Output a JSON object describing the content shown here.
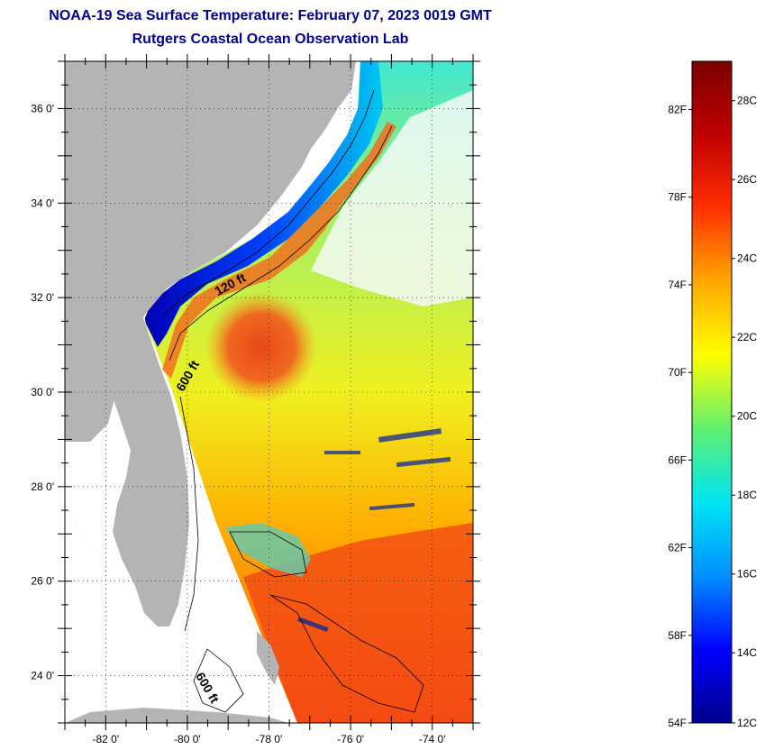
{
  "title": "NOAA-19 Sea Surface Temperature:  February 07, 2023 0019 GMT",
  "subtitle": "Rutgers Coastal Ocean Observation Lab",
  "map": {
    "lon_range": [
      -83,
      -73
    ],
    "lat_range": [
      23,
      37
    ],
    "lat_ticks": [
      {
        "value": 36,
        "label": "36 0'"
      },
      {
        "value": 34,
        "label": "34 0'"
      },
      {
        "value": 32,
        "label": "32 0'"
      },
      {
        "value": 30,
        "label": "30 0'"
      },
      {
        "value": 28,
        "label": "28 0'"
      },
      {
        "value": 26,
        "label": "26 0'"
      },
      {
        "value": 24,
        "label": "24 0'"
      }
    ],
    "lon_ticks": [
      {
        "value": -82,
        "label": "-82 0'"
      },
      {
        "value": -80,
        "label": "-80 0'"
      },
      {
        "value": -78,
        "label": "-78 0'"
      },
      {
        "value": -76,
        "label": "-76 0'"
      },
      {
        "value": -74,
        "label": "-74 0'"
      }
    ],
    "contour_labels": [
      {
        "text": "120 ft",
        "lon": -78.9,
        "lat": 32.2,
        "angle": -28
      },
      {
        "text": "600 ft",
        "lon": -79.9,
        "lat": 30.3,
        "angle": -60
      },
      {
        "text": "600 ft",
        "lon": -79.6,
        "lat": 23.7,
        "angle": 60
      }
    ],
    "colors": {
      "land": "#b4b4b4",
      "no_data": "#ffffff",
      "cold_shelf": "#0018c8",
      "gulf_stream": "#ee4010"
    }
  },
  "colorbar": {
    "range_f": [
      54,
      84.2
    ],
    "fahrenheit_ticks": [
      {
        "value": 82,
        "label": "82F"
      },
      {
        "value": 78,
        "label": "78F"
      },
      {
        "value": 74,
        "label": "74F"
      },
      {
        "value": 70,
        "label": "70F"
      },
      {
        "value": 66,
        "label": "66F"
      },
      {
        "value": 62,
        "label": "62F"
      },
      {
        "value": 58,
        "label": "58F"
      },
      {
        "value": 54,
        "label": "54F"
      }
    ],
    "celsius_ticks": [
      {
        "value": 28,
        "label": "28C"
      },
      {
        "value": 26,
        "label": "26C"
      },
      {
        "value": 24,
        "label": "24C"
      },
      {
        "value": 22,
        "label": "22C"
      },
      {
        "value": 20,
        "label": "20C"
      },
      {
        "value": 18,
        "label": "18C"
      },
      {
        "value": 16,
        "label": "16C"
      },
      {
        "value": 14,
        "label": "14C"
      },
      {
        "value": 12,
        "label": "12C"
      }
    ],
    "stops": [
      "#00008c",
      "#0000ff",
      "#0090ff",
      "#00e4f4",
      "#60f070",
      "#ffff00",
      "#ffa800",
      "#ff3000",
      "#c00000",
      "#7a0000"
    ]
  }
}
